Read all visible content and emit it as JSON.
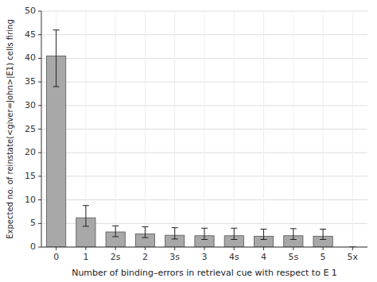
{
  "chart_data": {
    "type": "bar",
    "categories": [
      "0",
      "1",
      "2s",
      "2",
      "3s",
      "3",
      "4s",
      "4",
      "5s",
      "5",
      "5x"
    ],
    "values": [
      40.5,
      6.2,
      3.2,
      2.8,
      2.5,
      2.4,
      2.4,
      2.3,
      2.4,
      2.3,
      0.0
    ],
    "error_lower": [
      6.5,
      1.8,
      1.0,
      0.8,
      0.8,
      0.8,
      0.8,
      0.7,
      0.8,
      0.7,
      0.0
    ],
    "error_upper": [
      5.5,
      2.6,
      1.3,
      1.5,
      1.6,
      1.6,
      1.6,
      1.5,
      1.5,
      1.5,
      0.0
    ],
    "color": "#a8a8a8",
    "xlabel": "Number of binding–errors in retrieval cue with respect to E 1",
    "ylabel": "Expected no. of reinstate(<giver=John>|E1) cells firing",
    "ylim": [
      0,
      50
    ],
    "yticks": [
      0,
      5,
      10,
      15,
      20,
      25,
      30,
      35,
      40,
      45,
      50
    ],
    "grid": true
  }
}
